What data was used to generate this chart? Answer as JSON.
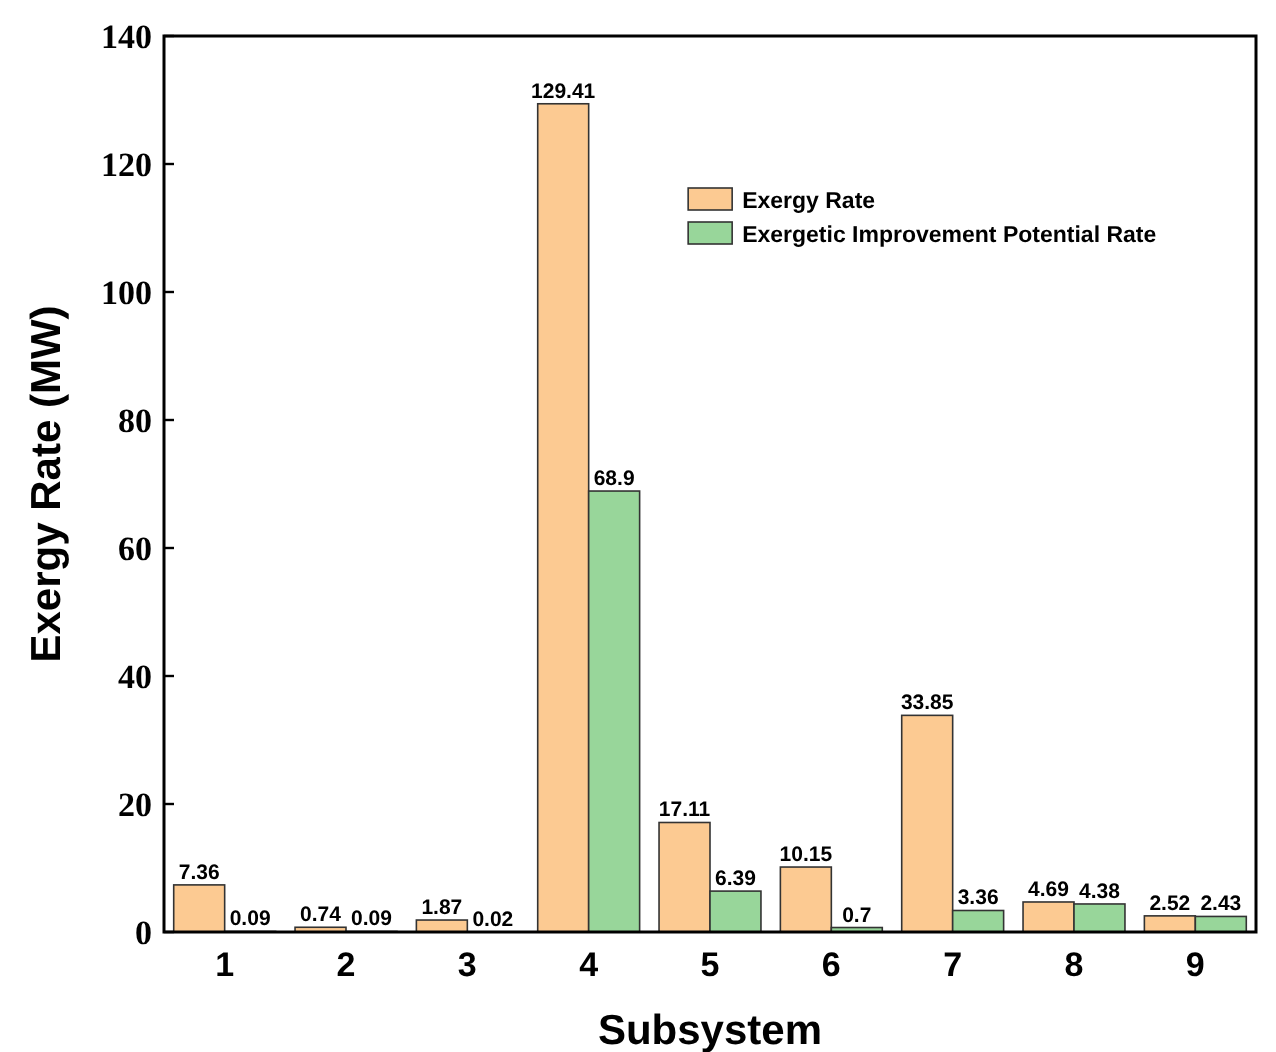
{
  "chart_data": {
    "type": "bar",
    "xlabel": "Subsystem",
    "ylabel": "Exergy Rate (MW)",
    "categories": [
      "1",
      "2",
      "3",
      "4",
      "5",
      "6",
      "7",
      "8",
      "9"
    ],
    "series": [
      {
        "name": "Exergy Rate",
        "color": "#fcca92",
        "values": [
          7.36,
          0.74,
          1.87,
          129.41,
          17.11,
          10.15,
          33.85,
          4.69,
          2.52
        ]
      },
      {
        "name": "Exergetic Improvement Potential Rate",
        "color": "#98d69a",
        "values": [
          0.09,
          0.09,
          0.02,
          68.9,
          6.39,
          0.7,
          3.36,
          4.38,
          2.43
        ]
      }
    ],
    "ylim": [
      0,
      140
    ],
    "yticks": [
      0,
      20,
      40,
      60,
      80,
      100,
      120,
      140
    ],
    "data_labels": true,
    "legend": "top right",
    "grid": false
  }
}
